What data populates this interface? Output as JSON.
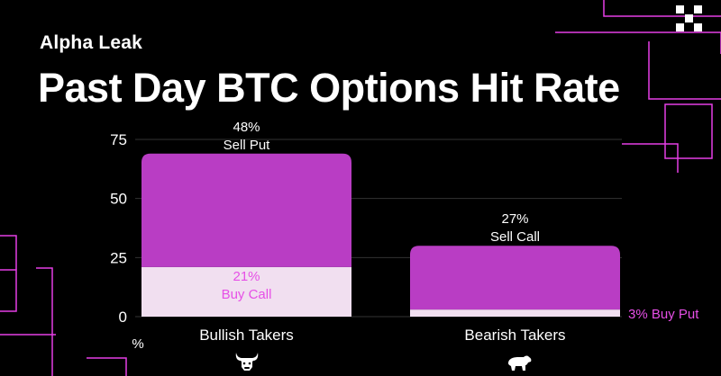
{
  "header": {
    "kicker": "Alpha Leak",
    "title": "Past Day BTC Options Hit Rate"
  },
  "colors": {
    "background": "#000000",
    "accent_magenta": "#b93dc4",
    "light_pink": "#f1dff0",
    "pink_text": "#e64fe6",
    "grid": "#333333"
  },
  "icons": {
    "brand": "okx-logo-icon",
    "bull": "bull-icon",
    "bear": "bear-icon"
  },
  "chart_data": {
    "type": "bar",
    "stacked": true,
    "categories": [
      "Bullish Takers",
      "Bearish Takers"
    ],
    "ylim": [
      0,
      75
    ],
    "yticks": [
      0,
      25,
      50,
      75
    ],
    "ylabel": "%",
    "grid": true,
    "series": [
      {
        "values": [
          21,
          3
        ],
        "labels": [
          "21%\nBuy Call",
          "3% Buy Put"
        ],
        "color": "#f1dff0",
        "label_color": "#e64fe6"
      },
      {
        "values": [
          48,
          27
        ],
        "labels": [
          "48%\nSell Put",
          "27%\nSell Call"
        ],
        "color": "#b93dc4",
        "label_color": "#ffffff"
      }
    ]
  }
}
